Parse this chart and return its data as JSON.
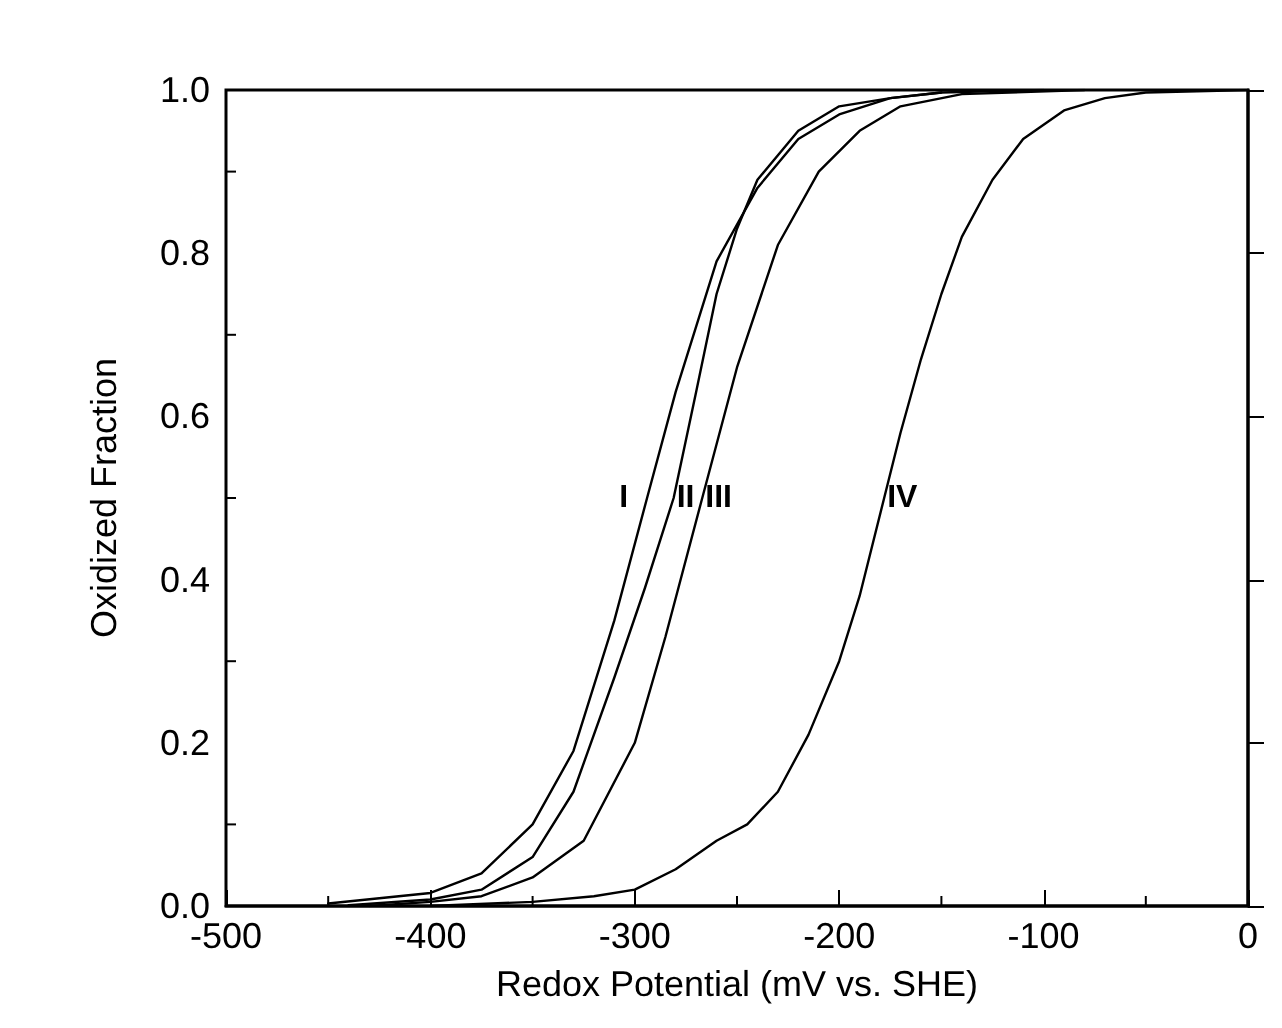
{
  "chart_data": {
    "type": "line",
    "xlabel": "Redox Potential (mV vs. SHE)",
    "ylabel": "Oxidized Fraction",
    "xlim": [
      -500,
      0
    ],
    "xticks": [
      -500,
      -400,
      -300,
      -200,
      -100,
      0
    ],
    "ylim": [
      0,
      1
    ],
    "yticks": [
      {
        "value": 0,
        "label": "0.0"
      },
      0.2,
      0.4,
      0.6,
      0.8,
      {
        "value": 1,
        "label": "1.0"
      }
    ],
    "grid": false,
    "legend": false,
    "marker": "none",
    "line_style": "solid",
    "series": [
      {
        "name": "I",
        "color": "#000000",
        "x": [
          -450,
          -400,
          -375,
          -350,
          -330,
          -310,
          -294,
          -280,
          -260,
          -240,
          -220,
          -200,
          -175,
          -150,
          -100
        ],
        "values": [
          0.003,
          0.016,
          0.04,
          0.1,
          0.19,
          0.35,
          0.5,
          0.63,
          0.79,
          0.88,
          0.94,
          0.97,
          0.99,
          0.997,
          1.0
        ]
      },
      {
        "name": "II",
        "color": "#000000",
        "x": [
          -440,
          -400,
          -375,
          -350,
          -330,
          -310,
          -295,
          -281,
          -270,
          -260,
          -250,
          -240,
          -220,
          -200,
          -175,
          -150
        ],
        "values": [
          0.001,
          0.008,
          0.02,
          0.06,
          0.14,
          0.28,
          0.39,
          0.5,
          0.63,
          0.75,
          0.83,
          0.89,
          0.95,
          0.98,
          0.99,
          0.997
        ]
      },
      {
        "name": "III",
        "color": "#000000",
        "x": [
          -430,
          -400,
          -375,
          -350,
          -325,
          -300,
          -285,
          -267,
          -250,
          -230,
          -210,
          -190,
          -170,
          -140,
          -80
        ],
        "values": [
          0.0,
          0.005,
          0.012,
          0.035,
          0.08,
          0.2,
          0.33,
          0.5,
          0.66,
          0.81,
          0.9,
          0.95,
          0.98,
          0.995,
          1.0
        ]
      },
      {
        "name": "IV",
        "color": "#000000",
        "x": [
          -400,
          -350,
          -320,
          -300,
          -280,
          -260,
          -245,
          -230,
          -215,
          -200,
          -190,
          -178,
          -170,
          -160,
          -150,
          -140,
          -125,
          -110,
          -90,
          -70,
          -50,
          0
        ],
        "values": [
          0.0,
          0.005,
          0.012,
          0.02,
          0.045,
          0.08,
          0.1,
          0.14,
          0.21,
          0.3,
          0.38,
          0.5,
          0.58,
          0.67,
          0.75,
          0.82,
          0.89,
          0.94,
          0.975,
          0.99,
          0.997,
          1.0
        ]
      }
    ]
  }
}
